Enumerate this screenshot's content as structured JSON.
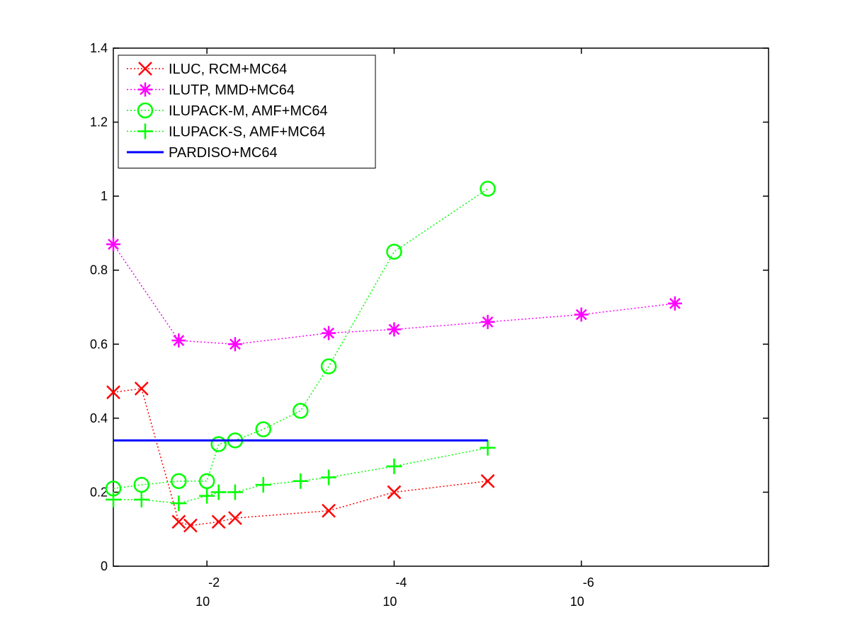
{
  "chart_data": {
    "type": "line",
    "x_scale": "log10",
    "x_reversed": true,
    "xlim": [
      0.1,
      1e-08
    ],
    "ylim": [
      0,
      1.4
    ],
    "x_ticks": [
      {
        "value": 0.01,
        "base": "10",
        "exp": "-2"
      },
      {
        "value": 0.0001,
        "base": "10",
        "exp": "-4"
      },
      {
        "value": 1e-06,
        "base": "10",
        "exp": "-6"
      }
    ],
    "y_ticks": [
      {
        "value": 0,
        "label": "0"
      },
      {
        "value": 0.2,
        "label": "0.2"
      },
      {
        "value": 0.4,
        "label": "0.4"
      },
      {
        "value": 0.6,
        "label": "0.6"
      },
      {
        "value": 0.8,
        "label": "0.8"
      },
      {
        "value": 1.0,
        "label": "1"
      },
      {
        "value": 1.2,
        "label": "1.2"
      },
      {
        "value": 1.4,
        "label": "1.4"
      }
    ],
    "legend_position": "top-left",
    "series": [
      {
        "key": "iluc",
        "name": "ILUC, RCM+MC64",
        "color": "#ff0000",
        "marker": "x",
        "line": "dotted",
        "points": [
          [
            0.1,
            0.47
          ],
          [
            0.05,
            0.48
          ],
          [
            0.02,
            0.12
          ],
          [
            0.015,
            0.11
          ],
          [
            0.0075,
            0.12
          ],
          [
            0.005,
            0.13
          ],
          [
            0.0005,
            0.15
          ],
          [
            0.0001,
            0.2
          ],
          [
            1e-05,
            0.23
          ]
        ]
      },
      {
        "key": "ilutp",
        "name": "ILUTP, MMD+MC64",
        "color": "#ff00ff",
        "marker": "asterisk",
        "line": "dotted",
        "points": [
          [
            0.1,
            0.87
          ],
          [
            0.02,
            0.61
          ],
          [
            0.005,
            0.6
          ],
          [
            0.0005,
            0.63
          ],
          [
            0.0001,
            0.64
          ],
          [
            1e-05,
            0.66
          ],
          [
            1e-06,
            0.68
          ],
          [
            1e-07,
            0.71
          ]
        ]
      },
      {
        "key": "ilupack_m",
        "name": "ILUPACK-M, AMF+MC64",
        "color": "#00ff00",
        "marker": "circle",
        "line": "dotted",
        "points": [
          [
            0.1,
            0.21
          ],
          [
            0.05,
            0.22
          ],
          [
            0.02,
            0.23
          ],
          [
            0.01,
            0.23
          ],
          [
            0.0075,
            0.33
          ],
          [
            0.005,
            0.34
          ],
          [
            0.0025,
            0.37
          ],
          [
            0.001,
            0.42
          ],
          [
            0.0005,
            0.54
          ],
          [
            0.0001,
            0.85
          ],
          [
            1e-05,
            1.02
          ]
        ]
      },
      {
        "key": "ilupack_s",
        "name": "ILUPACK-S, AMF+MC64",
        "color": "#00ff00",
        "marker": "plus",
        "line": "dotted",
        "points": [
          [
            0.1,
            0.18
          ],
          [
            0.05,
            0.18
          ],
          [
            0.02,
            0.17
          ],
          [
            0.01,
            0.19
          ],
          [
            0.0075,
            0.2
          ],
          [
            0.005,
            0.2
          ],
          [
            0.0025,
            0.22
          ],
          [
            0.001,
            0.23
          ],
          [
            0.0005,
            0.24
          ],
          [
            0.0001,
            0.27
          ],
          [
            1e-05,
            0.32
          ]
        ]
      },
      {
        "key": "pardiso",
        "name": "PARDISO+MC64",
        "color": "#0000ff",
        "marker": "none",
        "line": "solid",
        "points": [
          [
            0.1,
            0.34
          ],
          [
            1e-05,
            0.34
          ]
        ]
      }
    ]
  }
}
